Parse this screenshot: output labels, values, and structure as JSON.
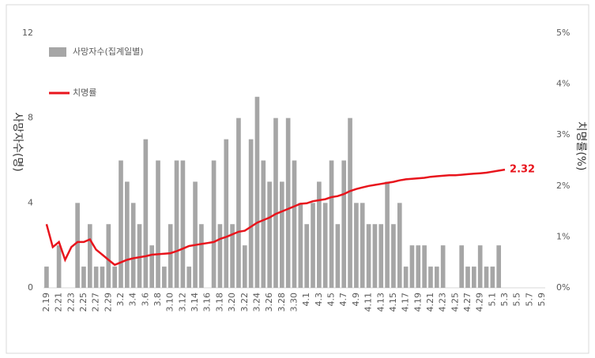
{
  "chart_data": {
    "type": "bar",
    "y_label": "사망자수(명)",
    "y2_label": "치명률(%)",
    "categories": [
      "2.19",
      null,
      "2.21",
      null,
      "2.23",
      null,
      "2.25",
      null,
      "2.27",
      null,
      "2.29",
      null,
      "3.2",
      null,
      "3.4",
      null,
      "3.6",
      null,
      "3.8",
      null,
      "3.10",
      null,
      "3.12",
      null,
      "3.14",
      null,
      "3.16",
      null,
      "3.18",
      null,
      "3.20",
      null,
      "3.22",
      null,
      "3.24",
      null,
      "3.26",
      null,
      "3.28",
      null,
      "3.30",
      null,
      "4.1",
      null,
      "4.3",
      null,
      "4.5",
      null,
      "4.7",
      null,
      "4.9",
      null,
      "4.11",
      null,
      "4.13",
      null,
      "4.15",
      null,
      "4.17",
      null,
      "4.19",
      null,
      "4.21",
      null,
      "4.23",
      null,
      "4.25",
      null,
      "4.27",
      null,
      "4.29",
      null,
      "5.1",
      null,
      "5.3",
      null,
      "5.5",
      null,
      "5.7",
      null,
      "5.9"
    ],
    "series": [
      {
        "name": "사망자수(집계일별)",
        "color": "#a6a6a6",
        "type": "bar",
        "values": [
          1,
          0,
          2,
          0,
          0,
          4,
          1,
          3,
          1,
          1,
          3,
          1,
          6,
          5,
          4,
          3,
          7,
          2,
          6,
          1,
          3,
          6,
          6,
          1,
          5,
          3,
          0,
          6,
          3,
          7,
          3,
          8,
          2,
          7,
          9,
          6,
          5,
          8,
          5,
          8,
          6,
          4,
          3,
          4,
          5,
          4,
          6,
          3,
          6,
          8,
          4,
          4,
          3,
          3,
          3,
          5,
          3,
          4,
          1,
          2,
          2,
          2,
          1,
          1,
          2,
          0,
          0,
          2,
          1,
          1,
          2,
          1,
          1,
          2,
          0,
          0,
          0,
          0,
          0,
          0,
          0
        ]
      },
      {
        "name": "치명률",
        "color": "#e8141c",
        "type": "line",
        "axis": "y2",
        "values": [
          1.25,
          0.8,
          0.9,
          0.55,
          0.8,
          0.9,
          0.9,
          0.95,
          0.75,
          0.65,
          0.55,
          0.45,
          0.5,
          0.55,
          0.58,
          0.6,
          0.62,
          0.65,
          0.66,
          0.67,
          0.68,
          0.72,
          0.77,
          0.82,
          0.84,
          0.86,
          0.88,
          0.9,
          0.96,
          1.0,
          1.05,
          1.1,
          1.12,
          1.2,
          1.28,
          1.33,
          1.38,
          1.45,
          1.5,
          1.55,
          1.6,
          1.65,
          1.66,
          1.7,
          1.72,
          1.74,
          1.78,
          1.8,
          1.84,
          1.9,
          1.94,
          1.97,
          2.0,
          2.02,
          2.04,
          2.06,
          2.08,
          2.11,
          2.13,
          2.14,
          2.15,
          2.16,
          2.18,
          2.19,
          2.2,
          2.21,
          2.21,
          2.22,
          2.23,
          2.24,
          2.25,
          2.26,
          2.28,
          2.3,
          2.32,
          null,
          null,
          null,
          null,
          null,
          null
        ]
      }
    ],
    "ylim": [
      0,
      12
    ],
    "yticks": [
      0,
      4,
      8,
      12
    ],
    "y2lim": [
      0,
      5
    ],
    "y2ticks": [
      {
        "value": 0,
        "label": "0%"
      },
      {
        "value": 1,
        "label": "1%"
      },
      {
        "value": 2,
        "label": "2%"
      },
      {
        "value": 3,
        "label": "3%"
      },
      {
        "value": 4,
        "label": "4%"
      },
      {
        "value": 5,
        "label": "5%"
      }
    ],
    "grid": false
  }
}
